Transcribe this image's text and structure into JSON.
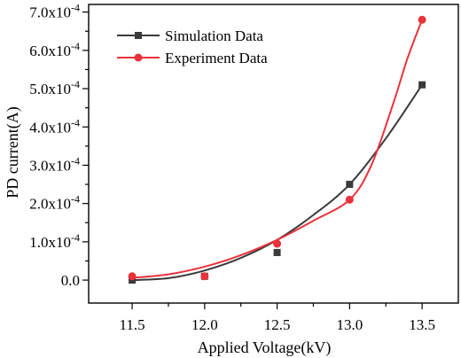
{
  "chart_data": {
    "type": "line",
    "title": "",
    "xlabel": "Applied Voltage(kV)",
    "ylabel": "PD current(A)",
    "x": [
      11.5,
      12.0,
      12.5,
      13.0,
      13.5
    ],
    "xlim": [
      11.2,
      13.75
    ],
    "ylim": [
      -6e-05,
      0.00072
    ],
    "x_ticks": [
      11.5,
      12.0,
      12.5,
      13.0,
      13.5
    ],
    "x_tick_labels": [
      "11.5",
      "12.0",
      "12.5",
      "13.0",
      "13.5"
    ],
    "y_ticks": [
      0,
      0.0001,
      0.0002,
      0.0003,
      0.0004,
      0.0005,
      0.0006,
      0.0007
    ],
    "y_tick_mantissas": [
      "0.0",
      "1.0x10",
      "2.0x10",
      "3.0x10",
      "4.0x10",
      "5.0x10",
      "6.0x10",
      "7.0x10"
    ],
    "y_tick_exponent": "-4",
    "grid": false,
    "legend_position": "top-left",
    "series": [
      {
        "name": "Simulation Data",
        "marker": "square",
        "color": "#3a3a3a",
        "values": [
          0.0,
          1e-05,
          7.2e-05,
          0.00025,
          0.00051
        ],
        "curve": [
          [
            11.5,
            0.0
          ],
          [
            11.75,
            5e-06
          ],
          [
            12.0,
            2.5e-05
          ],
          [
            12.25,
            5.8e-05
          ],
          [
            12.5,
            0.000105
          ],
          [
            12.75,
            0.00017
          ],
          [
            13.0,
            0.00025
          ],
          [
            13.25,
            0.00037
          ],
          [
            13.5,
            0.00051
          ]
        ]
      },
      {
        "name": "Experiment Data",
        "marker": "circle",
        "color": "#e8333b",
        "values": [
          1e-05,
          1e-05,
          9.5e-05,
          0.00021,
          0.00068
        ],
        "curve": [
          [
            11.5,
            6e-06
          ],
          [
            11.75,
            1.5e-05
          ],
          [
            12.0,
            3.5e-05
          ],
          [
            12.25,
            6.5e-05
          ],
          [
            12.5,
            0.000105
          ],
          [
            12.75,
            0.000155
          ],
          [
            13.0,
            0.00021
          ],
          [
            13.15,
            0.0003
          ],
          [
            13.3,
            0.00046
          ],
          [
            13.4,
            0.00058
          ],
          [
            13.5,
            0.00068
          ]
        ]
      }
    ]
  }
}
